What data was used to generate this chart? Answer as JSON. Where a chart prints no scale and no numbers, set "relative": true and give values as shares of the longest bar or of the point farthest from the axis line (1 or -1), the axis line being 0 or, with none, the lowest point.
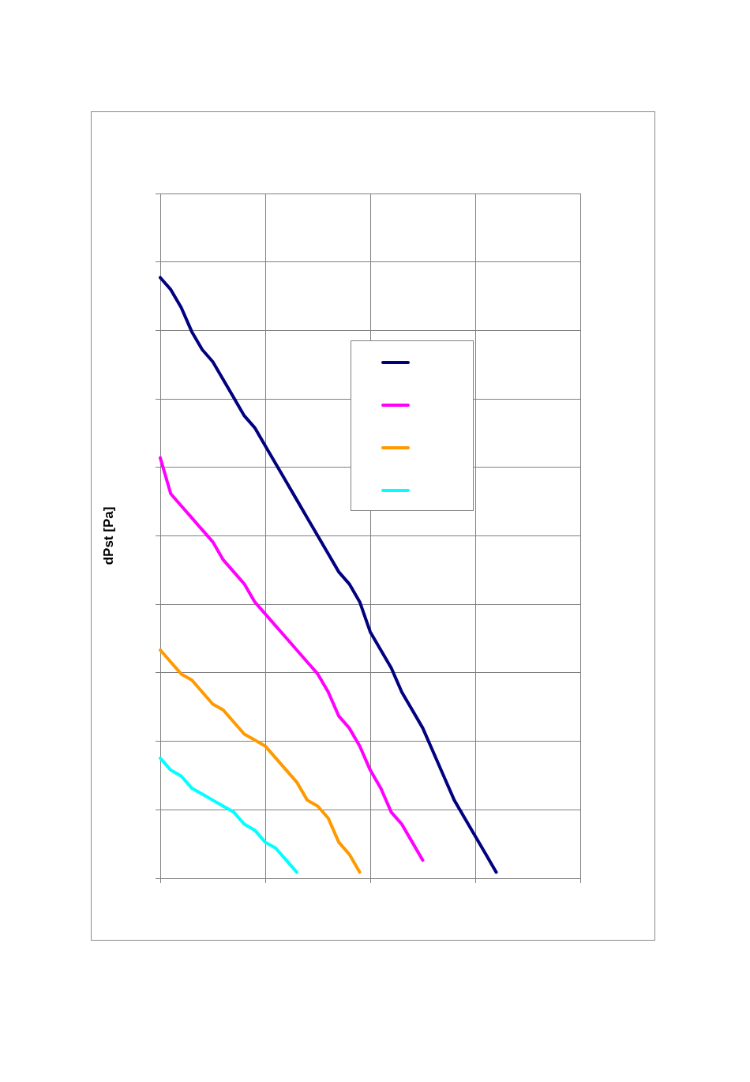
{
  "chart_data": {
    "type": "line",
    "ylabel": "dPst [Pa]",
    "relative": true,
    "grid": true,
    "marker": "none",
    "line_style": "solid",
    "categories": [
      null,
      null,
      null,
      null,
      null,
      null,
      null,
      null,
      null,
      null,
      null,
      null,
      null,
      null,
      null,
      null,
      null,
      null,
      null,
      null,
      null,
      null,
      null,
      null,
      null,
      null,
      null,
      null,
      null,
      null,
      null,
      null,
      null,
      null,
      null,
      null,
      null,
      null,
      null,
      null,
      null
    ],
    "series": [
      {
        "color": "#000080",
        "values": [
          1.0,
          0.98,
          0.95,
          0.91,
          0.88,
          0.86,
          0.83,
          0.8,
          0.77,
          0.75,
          0.72,
          0.69,
          0.66,
          0.63,
          0.6,
          0.57,
          0.54,
          0.51,
          0.49,
          0.46,
          0.41,
          0.38,
          0.35,
          0.31,
          0.28,
          0.25,
          0.21,
          0.17,
          0.13,
          0.1,
          0.07,
          0.04,
          0.01,
          null,
          null,
          null,
          null,
          null,
          null,
          null,
          null
        ]
      },
      {
        "color": "#ff00ff",
        "values": [
          0.7,
          0.64,
          0.62,
          0.6,
          0.58,
          0.56,
          0.53,
          0.51,
          0.49,
          0.46,
          0.44,
          0.42,
          0.4,
          0.38,
          0.36,
          0.34,
          0.31,
          0.27,
          0.25,
          0.22,
          0.18,
          0.15,
          0.11,
          0.09,
          0.06,
          0.03,
          null,
          null,
          null,
          null,
          null,
          null,
          null,
          null,
          null,
          null,
          null,
          null,
          null,
          null,
          null
        ]
      },
      {
        "color": "#ff9900",
        "values": [
          0.38,
          0.36,
          0.34,
          0.33,
          0.31,
          0.29,
          0.28,
          0.26,
          0.24,
          0.23,
          0.22,
          0.2,
          0.18,
          0.16,
          0.13,
          0.12,
          0.1,
          0.06,
          0.04,
          0.01,
          null,
          null,
          null,
          null,
          null,
          null,
          null,
          null,
          null,
          null,
          null,
          null,
          null,
          null,
          null,
          null,
          null,
          null,
          null,
          null,
          null
        ]
      },
      {
        "color": "#00ffff",
        "values": [
          0.2,
          0.18,
          0.17,
          0.15,
          0.14,
          0.13,
          0.12,
          0.11,
          0.09,
          0.08,
          0.06,
          0.05,
          0.03,
          0.01,
          null,
          null,
          null,
          null,
          null,
          null,
          null,
          null,
          null,
          null,
          null,
          null,
          null,
          null,
          null,
          null,
          null,
          null,
          null,
          null,
          null,
          null,
          null,
          null,
          null,
          null,
          null
        ]
      }
    ]
  }
}
